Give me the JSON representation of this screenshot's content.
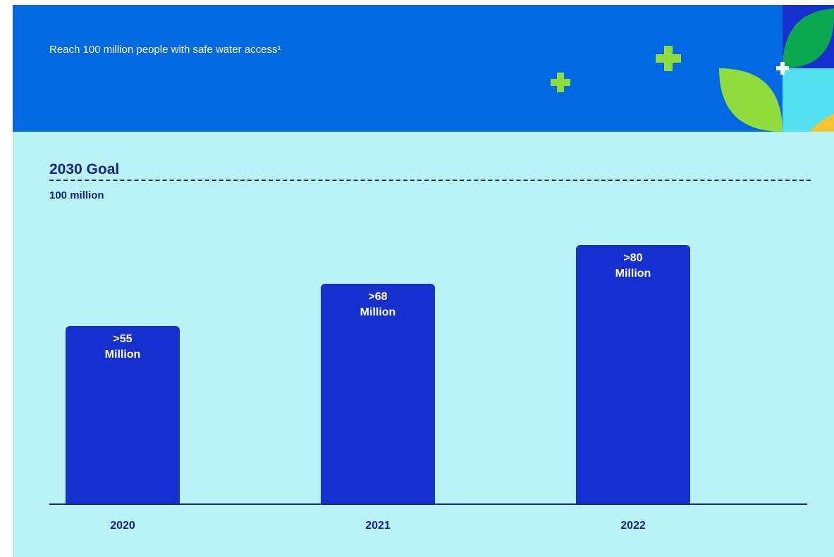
{
  "chart_data": {
    "type": "bar",
    "title": "Reach 100 million people with safe water access¹",
    "goal": {
      "label": "2030 Goal",
      "value": 100,
      "value_label": "100 million"
    },
    "categories": [
      "2020",
      "2021",
      "2022"
    ],
    "values": [
      55,
      68,
      80
    ],
    "value_labels": [
      ">55 Million",
      ">68 Million",
      ">80 Million"
    ],
    "color": "#1530cf",
    "ylim": [
      0,
      100
    ]
  }
}
